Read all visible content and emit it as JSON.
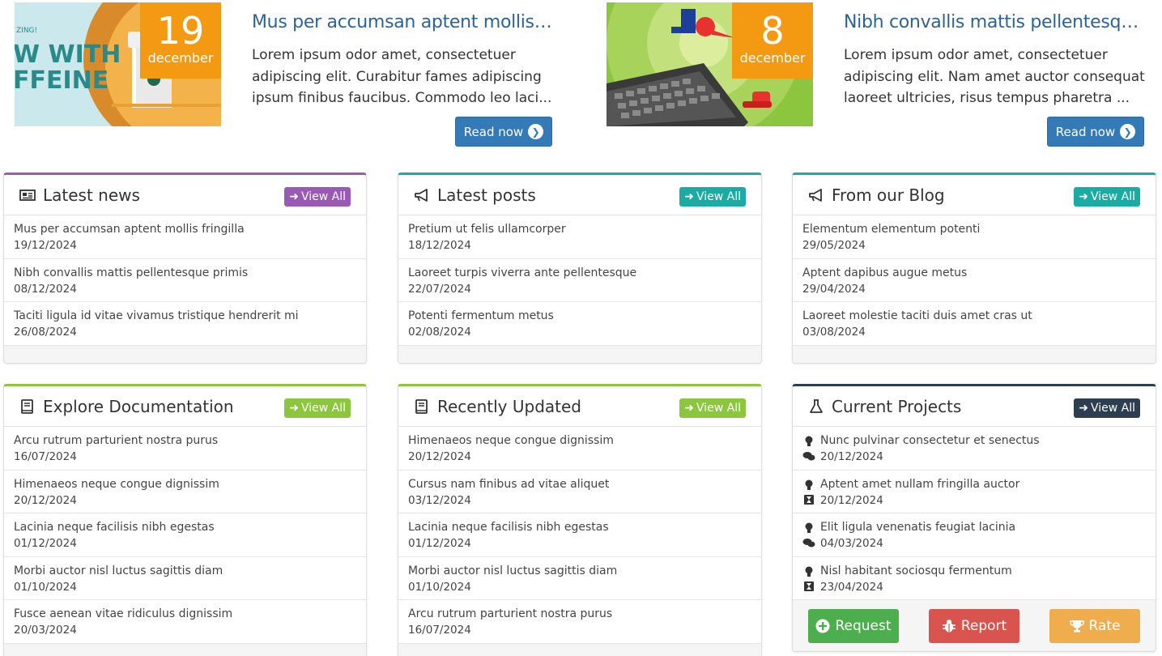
{
  "features": [
    {
      "day": "19",
      "month": "december",
      "title": "Mus per accumsan aptent mollis fr...",
      "body": "Lorem ipsum odor amet, consectetuer adipiscing elit. Curabitur fames adipiscing ipsum finibus faucibus. Commodo leo laci...",
      "button": "Read now",
      "thumb_text": "ZING!\nW WITH\nFFEINE"
    },
    {
      "day": "8",
      "month": "december",
      "title": "Nibh convallis mattis pellentesque...",
      "body": "Lorem ipsum odor amet, consectetuer adipiscing elit. Nam amet auctor consequat laoreet ultricies, risus tempus pharetra ...",
      "button": "Read now"
    }
  ],
  "view_all_label": "View All",
  "panels": {
    "latest_news": {
      "title": "Latest news",
      "accent": "#9b59b6",
      "items": [
        {
          "title": "Mus per accumsan aptent mollis fringilla",
          "date": "19/12/2024"
        },
        {
          "title": "Nibh convallis mattis pellentesque primis",
          "date": "08/12/2024"
        },
        {
          "title": "Taciti ligula id vitae vivamus tristique hendrerit mi",
          "date": "26/08/2024"
        }
      ]
    },
    "latest_posts": {
      "title": "Latest posts",
      "accent": "#1aaba5",
      "items": [
        {
          "title": "Pretium ut felis ullamcorper",
          "date": "18/12/2024"
        },
        {
          "title": "Laoreet turpis viverra ante pellentesque",
          "date": "22/07/2024"
        },
        {
          "title": "Potenti fermentum metus",
          "date": "02/08/2024"
        }
      ]
    },
    "blog": {
      "title": "From our Blog",
      "accent": "#1aaba5",
      "items": [
        {
          "title": "Elementum elementum potenti",
          "date": "29/05/2024"
        },
        {
          "title": "Aptent dapibus augue metus",
          "date": "29/04/2024"
        },
        {
          "title": "Laoreet molestie taciti duis amet cras ut",
          "date": "03/08/2024"
        }
      ]
    },
    "documentation": {
      "title": "Explore Documentation",
      "accent": "#8cc63f",
      "items": [
        {
          "title": "Arcu rutrum parturient nostra purus",
          "date": "16/07/2024"
        },
        {
          "title": "Himenaeos neque congue dignissim",
          "date": "20/12/2024"
        },
        {
          "title": "Lacinia neque facilisis nibh egestas",
          "date": "01/12/2024"
        },
        {
          "title": "Morbi auctor nisl luctus sagittis diam",
          "date": "01/10/2024"
        },
        {
          "title": "Fusce aenean vitae ridiculus dignissim",
          "date": "20/03/2024"
        }
      ]
    },
    "recently_updated": {
      "title": "Recently Updated",
      "accent": "#8cc63f",
      "items": [
        {
          "title": "Himenaeos neque congue dignissim",
          "date": "20/12/2024"
        },
        {
          "title": "Cursus nam finibus ad vitae aliquet",
          "date": "03/12/2024"
        },
        {
          "title": "Lacinia neque facilisis nibh egestas",
          "date": "01/12/2024"
        },
        {
          "title": "Morbi auctor nisl luctus sagittis diam",
          "date": "01/10/2024"
        },
        {
          "title": "Arcu rutrum parturient nostra purus",
          "date": "16/07/2024"
        }
      ]
    },
    "projects": {
      "title": "Current Projects",
      "accent": "#2c3e50",
      "items": [
        {
          "title": "Nunc pulvinar consectetur et senectus",
          "date": "20/12/2024",
          "status_icon": "comments-icon"
        },
        {
          "title": "Aptent amet nullam fringilla auctor",
          "date": "20/12/2024",
          "status_icon": "hourglass-icon"
        },
        {
          "title": "Elit ligula venenatis feugiat lacinia",
          "date": "04/03/2024",
          "status_icon": "comments-icon"
        },
        {
          "title": "Nisl habitant sociosqu fermentum",
          "date": "23/04/2024",
          "status_icon": "hourglass-icon"
        }
      ],
      "actions": [
        {
          "label": "Request",
          "color": "#4cae4c",
          "icon": "plus-circle-icon"
        },
        {
          "label": "Report",
          "color": "#d9534f",
          "icon": "bug-icon"
        },
        {
          "label": "Rate",
          "color": "#f0ad4e",
          "icon": "trophy-icon"
        }
      ]
    }
  }
}
